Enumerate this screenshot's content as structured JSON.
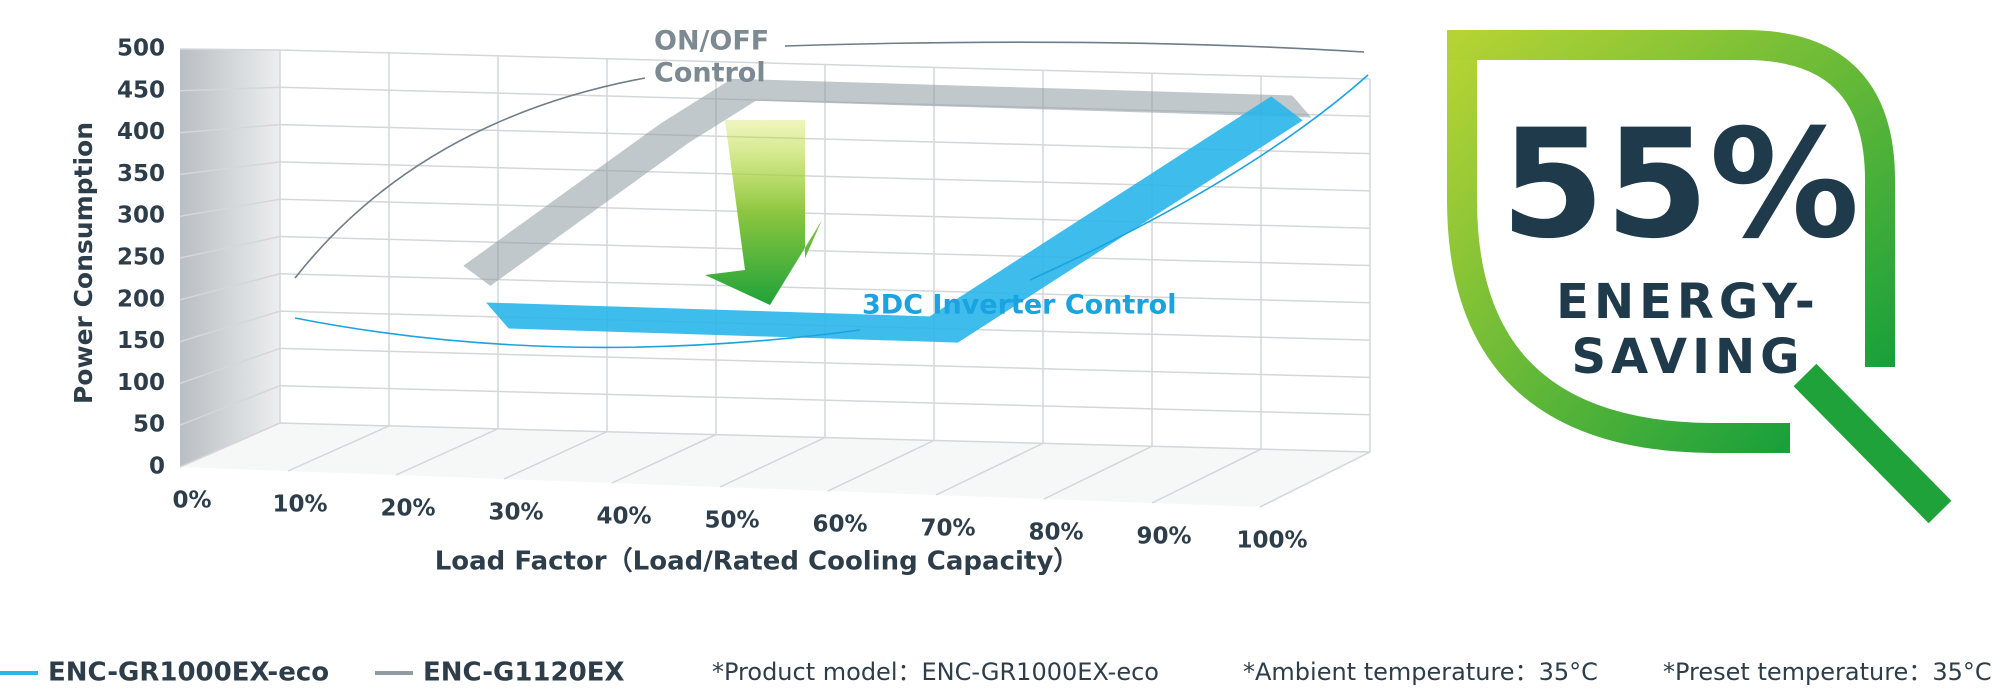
{
  "chart_data": {
    "type": "line",
    "x_label": "Load Factor（Load/Rated Cooling Capacity）",
    "y_label": "Power Consumption",
    "categories": [
      "0%",
      "10%",
      "20%",
      "30%",
      "40%",
      "50%",
      "60%",
      "70%",
      "80%",
      "90%",
      "100%"
    ],
    "series": [
      {
        "name": "ENC-GR1000EX-eco",
        "color": "#29b6ea",
        "values": [
          null,
          170,
          170,
          170,
          170,
          170,
          230,
          290,
          350,
          410,
          470
        ]
      },
      {
        "name": "ENC-G1120EX",
        "color": "#8e9ba3",
        "values": [
          null,
          215,
          280,
          345,
          410,
          470,
          470,
          470,
          470,
          470,
          470
        ]
      }
    ],
    "annotations": [
      "ON/OFF",
      "Control",
      "3DC Inverter Control"
    ],
    "ylim": [
      0,
      500
    ],
    "yticks": [
      0,
      50,
      100,
      150,
      200,
      250,
      300,
      350,
      400,
      450,
      500
    ],
    "grid": true
  },
  "badge": {
    "value": "55%",
    "lines": [
      "ENERGY-",
      "SAVING"
    ]
  },
  "footnotes": [
    "*Product model：ENC-GR1000EX-eco",
    "*Ambient temperature：35°C",
    "*Preset temperature：35°C"
  ]
}
